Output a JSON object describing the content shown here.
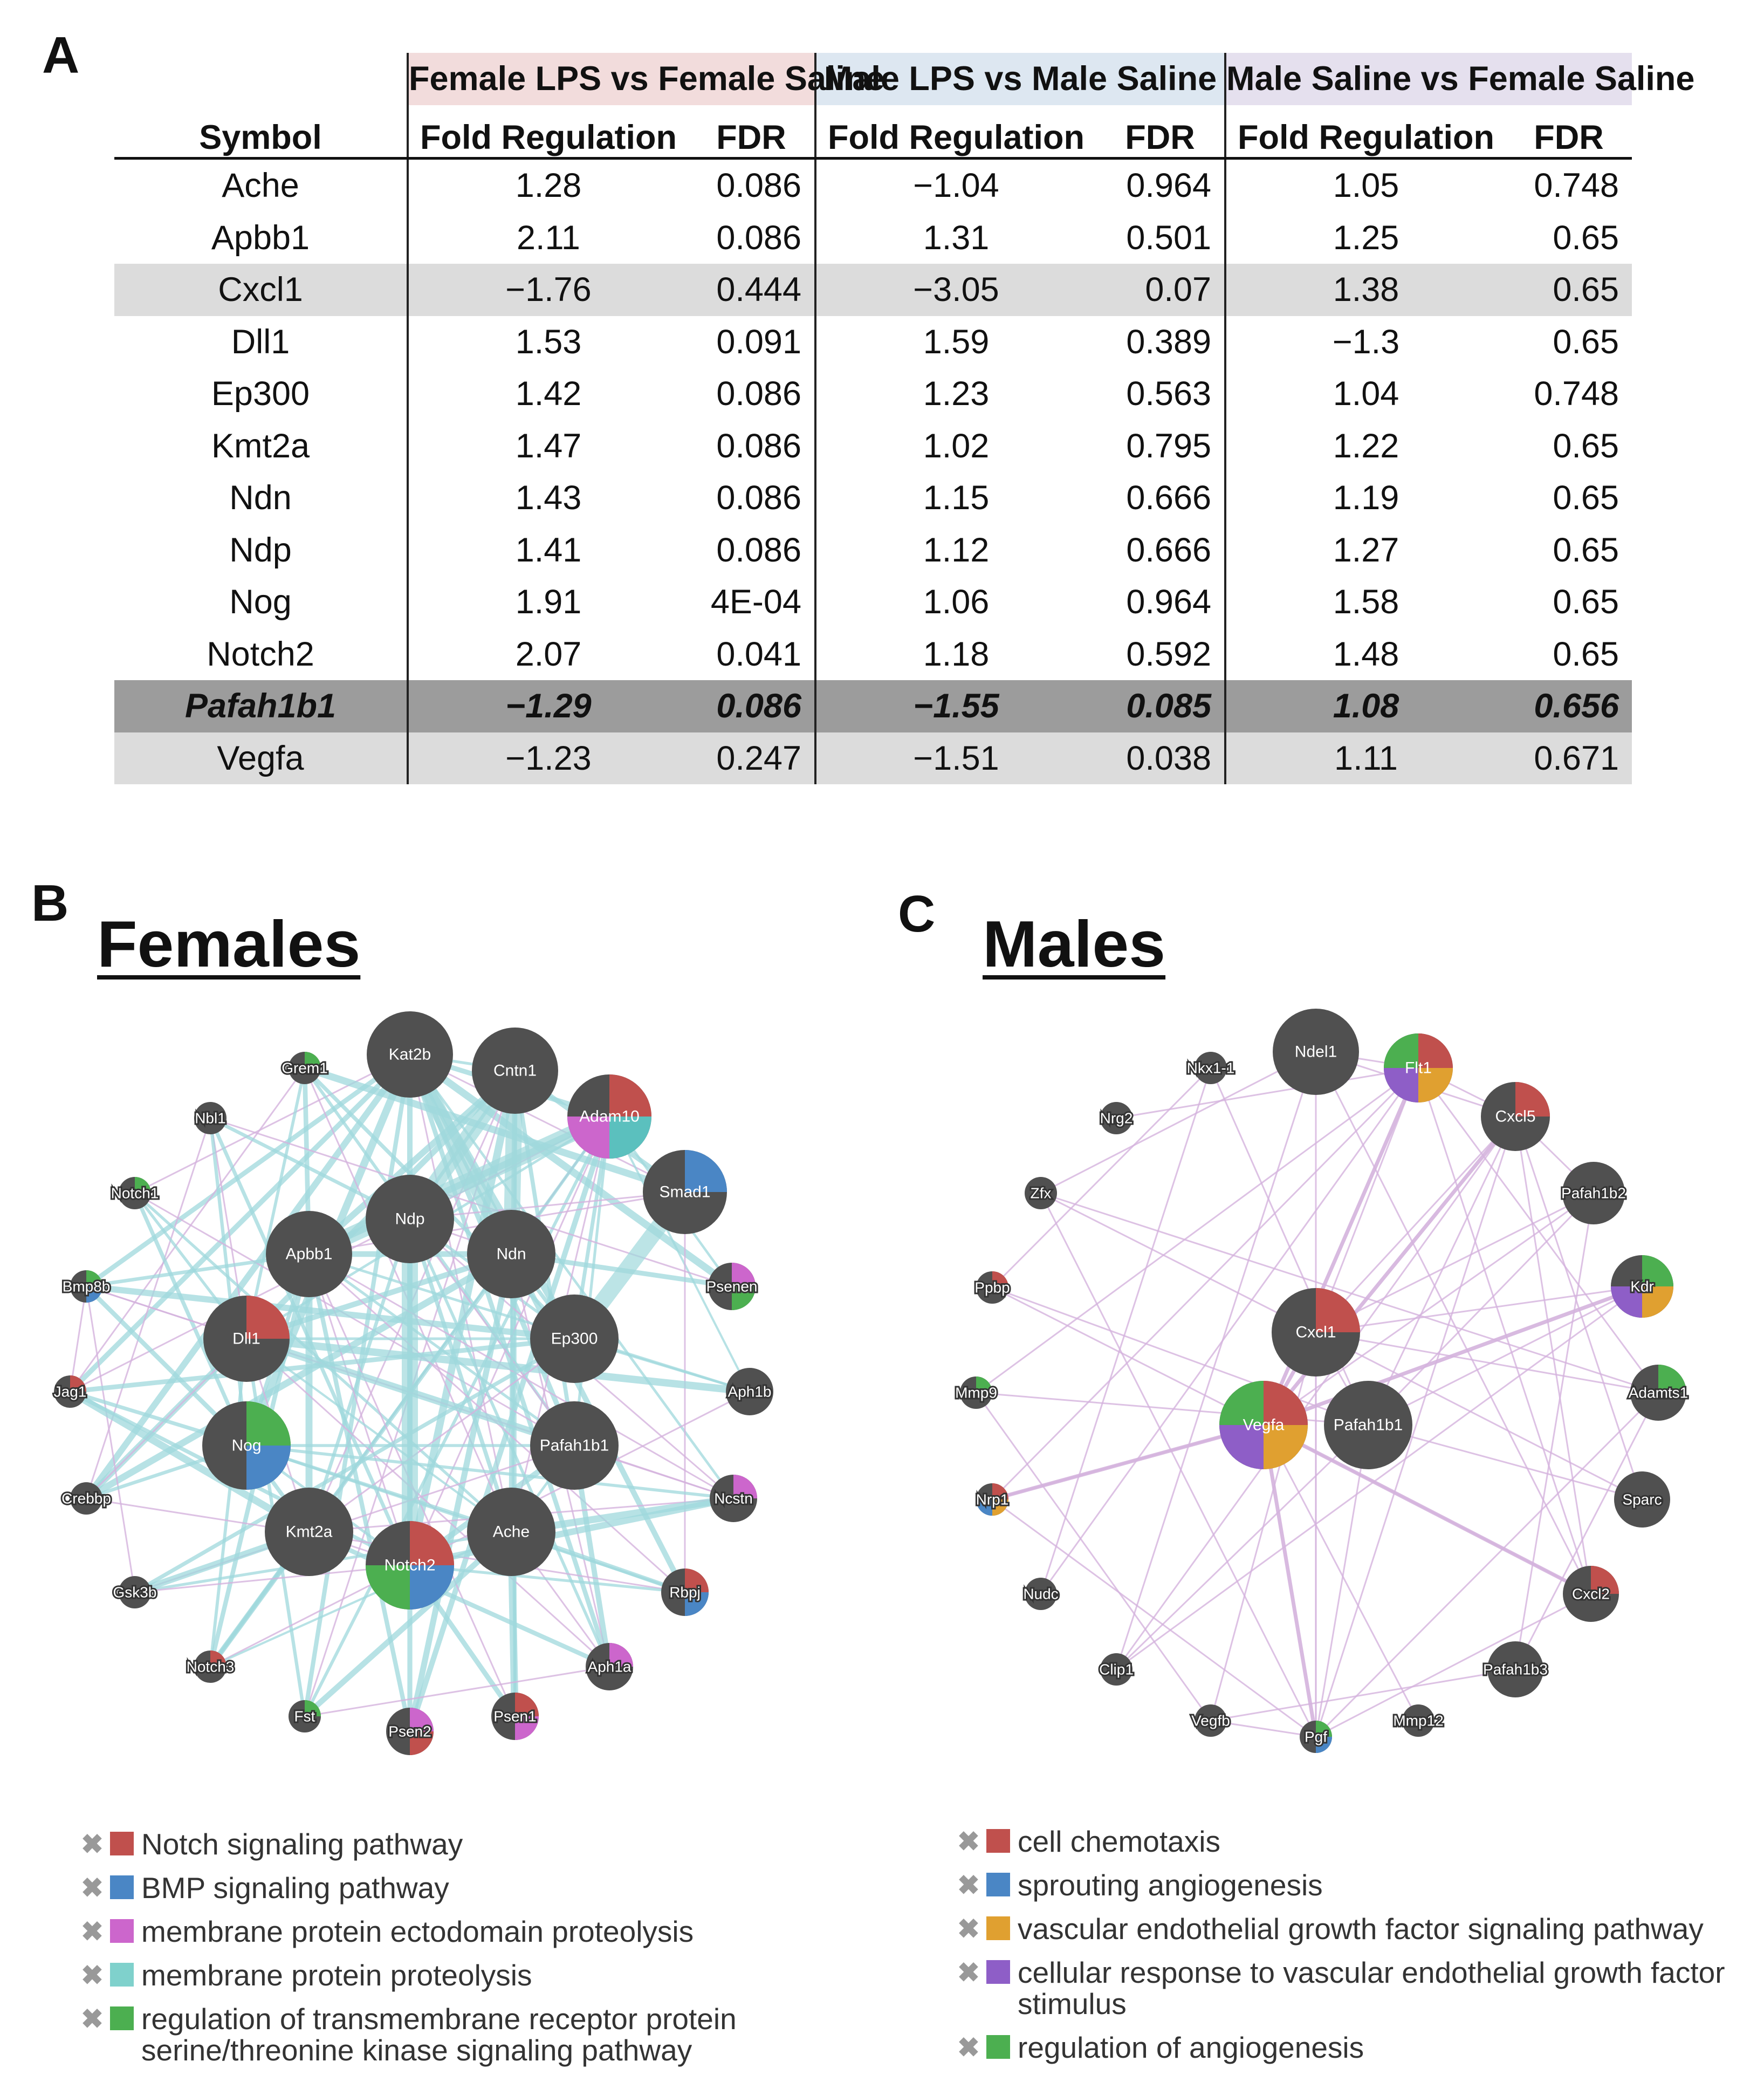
{
  "panel_labels": {
    "a": "A",
    "b": "B",
    "c": "C"
  },
  "table": {
    "symbol_header": "Symbol",
    "groups": [
      "Female LPS vs Female Saline",
      "Male LPS vs Male Saline",
      "Male Saline vs Female Saline"
    ],
    "fold_header": "Fold Regulation",
    "fdr_header": "FDR",
    "rows": [
      {
        "symbol": "Ache",
        "v": [
          "1.28",
          "0.086",
          "−1.04",
          "0.964",
          "1.05",
          "0.748"
        ]
      },
      {
        "symbol": "Apbb1",
        "v": [
          "2.11",
          "0.086",
          "1.31",
          "0.501",
          "1.25",
          "0.65"
        ]
      },
      {
        "symbol": "Cxcl1",
        "v": [
          "−1.76",
          "0.444",
          "−3.05",
          "0.07",
          "1.38",
          "0.65"
        ]
      },
      {
        "symbol": "Dll1",
        "v": [
          "1.53",
          "0.091",
          "1.59",
          "0.389",
          "−1.3",
          "0.65"
        ]
      },
      {
        "symbol": "Ep300",
        "v": [
          "1.42",
          "0.086",
          "1.23",
          "0.563",
          "1.04",
          "0.748"
        ]
      },
      {
        "symbol": "Kmt2a",
        "v": [
          "1.47",
          "0.086",
          "1.02",
          "0.795",
          "1.22",
          "0.65"
        ]
      },
      {
        "symbol": "Ndn",
        "v": [
          "1.43",
          "0.086",
          "1.15",
          "0.666",
          "1.19",
          "0.65"
        ]
      },
      {
        "symbol": "Ndp",
        "v": [
          "1.41",
          "0.086",
          "1.12",
          "0.666",
          "1.27",
          "0.65"
        ]
      },
      {
        "symbol": "Nog",
        "v": [
          "1.91",
          "4E-04",
          "1.06",
          "0.964",
          "1.58",
          "0.65"
        ]
      },
      {
        "symbol": "Notch2",
        "v": [
          "2.07",
          "0.041",
          "1.18",
          "0.592",
          "1.48",
          "0.65"
        ]
      },
      {
        "symbol": "Pafah1b1",
        "v": [
          "−1.29",
          "0.086",
          "−1.55",
          "0.085",
          "1.08",
          "0.656"
        ]
      },
      {
        "symbol": "Vegfa",
        "v": [
          "−1.23",
          "0.247",
          "−1.51",
          "0.038",
          "1.11",
          "0.671"
        ]
      }
    ]
  },
  "females": {
    "title": "Females",
    "nodes": [
      {
        "id": "Kat2b",
        "big": true
      },
      {
        "id": "Cntn1",
        "big": true
      },
      {
        "id": "Adam10",
        "big": true,
        "pie": [
          "#c0504d",
          "#5bc0be",
          "#cc66cc"
        ]
      },
      {
        "id": "Smad1",
        "big": true,
        "pie": [
          "#4a86c5"
        ]
      },
      {
        "id": "Grem1",
        "pie": [
          "#4caf50"
        ]
      },
      {
        "id": "Nbl1"
      },
      {
        "id": "Notch1",
        "pie": [
          "#4caf50"
        ]
      },
      {
        "id": "Ndp",
        "big": true
      },
      {
        "id": "Ndn",
        "big": true
      },
      {
        "id": "Apbb1",
        "big": true
      },
      {
        "id": "Bmp8b",
        "pie": [
          "#4caf50",
          "#4a86c5"
        ]
      },
      {
        "id": "Psenen",
        "pie": [
          "#cc66cc",
          "#4caf50"
        ]
      },
      {
        "id": "Dll1",
        "big": true,
        "pie": [
          "#c0504d"
        ]
      },
      {
        "id": "Ep300",
        "big": true
      },
      {
        "id": "Jag1",
        "pie": [
          "#c0504d"
        ]
      },
      {
        "id": "Aph1b"
      },
      {
        "id": "Nog",
        "big": true,
        "pie": [
          "#4caf50",
          "#4a86c5"
        ]
      },
      {
        "id": "Pafah1b1",
        "big": true
      },
      {
        "id": "Crebbp"
      },
      {
        "id": "Ncstn",
        "pie": [
          "#cc66cc"
        ]
      },
      {
        "id": "Kmt2a",
        "big": true
      },
      {
        "id": "Ache",
        "big": true
      },
      {
        "id": "Notch2",
        "big": true,
        "pie": [
          "#c0504d",
          "#4a86c5",
          "#4caf50"
        ]
      },
      {
        "id": "Gsk3b"
      },
      {
        "id": "Rbpj",
        "pie": [
          "#c0504d",
          "#4a86c5"
        ]
      },
      {
        "id": "Notch3",
        "pie": [
          "#c0504d"
        ]
      },
      {
        "id": "Aph1a",
        "pie": [
          "#cc66cc"
        ]
      },
      {
        "id": "Fst",
        "pie": [
          "#4caf50"
        ]
      },
      {
        "id": "Psen2",
        "pie": [
          "#cc66cc",
          "#c0504d"
        ]
      },
      {
        "id": "Psen1",
        "pie": [
          "#c0504d",
          "#cc66cc"
        ]
      }
    ],
    "legend": [
      {
        "label": "Notch signaling pathway",
        "color": "#c0504d"
      },
      {
        "label": "BMP signaling pathway",
        "color": "#4a86c5"
      },
      {
        "label": "membrane protein ectodomain proteolysis",
        "color": "#cc66cc"
      },
      {
        "label": "membrane protein proteolysis",
        "color": "#7fd1cc"
      },
      {
        "label": "regulation of transmembrane receptor protein serine/threonine kinase signaling pathway",
        "color": "#4caf50"
      }
    ]
  },
  "males": {
    "title": "Males",
    "nodes": [
      {
        "id": "Nkx1-1"
      },
      {
        "id": "Ndel1",
        "big": true
      },
      {
        "id": "Flt1",
        "pie": [
          "#c0504d",
          "#e0a030",
          "#8e5ec7",
          "#4caf50"
        ]
      },
      {
        "id": "Nrg2"
      },
      {
        "id": "Cxcl5",
        "pie": [
          "#c0504d"
        ]
      },
      {
        "id": "Zfx"
      },
      {
        "id": "Pafah1b2"
      },
      {
        "id": "Kdr",
        "pie": [
          "#4caf50",
          "#e0a030",
          "#8e5ec7"
        ]
      },
      {
        "id": "Ppbp",
        "pie": [
          "#c0504d"
        ]
      },
      {
        "id": "Cxcl1",
        "big": true,
        "pie": [
          "#c0504d"
        ]
      },
      {
        "id": "Mmp9",
        "pie": [
          "#4caf50"
        ]
      },
      {
        "id": "Adamts1",
        "pie": [
          "#4caf50"
        ]
      },
      {
        "id": "Vegfa",
        "big": true,
        "pie": [
          "#c0504d",
          "#e0a030",
          "#8e5ec7",
          "#4caf50"
        ]
      },
      {
        "id": "Pafah1b1",
        "big": true
      },
      {
        "id": "Nrp1",
        "pie": [
          "#c0504d",
          "#e0a030",
          "#4a86c5"
        ]
      },
      {
        "id": "Sparc"
      },
      {
        "id": "Nudc"
      },
      {
        "id": "Cxcl2",
        "pie": [
          "#c0504d"
        ]
      },
      {
        "id": "Clip1"
      },
      {
        "id": "Pafah1b3"
      },
      {
        "id": "Vegfb"
      },
      {
        "id": "Pgf",
        "pie": [
          "#4caf50",
          "#4a86c5"
        ]
      },
      {
        "id": "Mmp12"
      }
    ],
    "legend": [
      {
        "label": "cell chemotaxis",
        "color": "#c0504d"
      },
      {
        "label": "sprouting angiogenesis",
        "color": "#4a86c5"
      },
      {
        "label": "vascular endothelial growth factor signaling pathway",
        "color": "#e0a030"
      },
      {
        "label": "cellular response to vascular endothelial growth factor stimulus",
        "color": "#8e5ec7"
      },
      {
        "label": "regulation of angiogenesis",
        "color": "#4caf50"
      }
    ]
  },
  "colors": {
    "node": "#505050",
    "edge_teal": "#9fd8dc",
    "edge_pink": "#d4b3dd"
  }
}
